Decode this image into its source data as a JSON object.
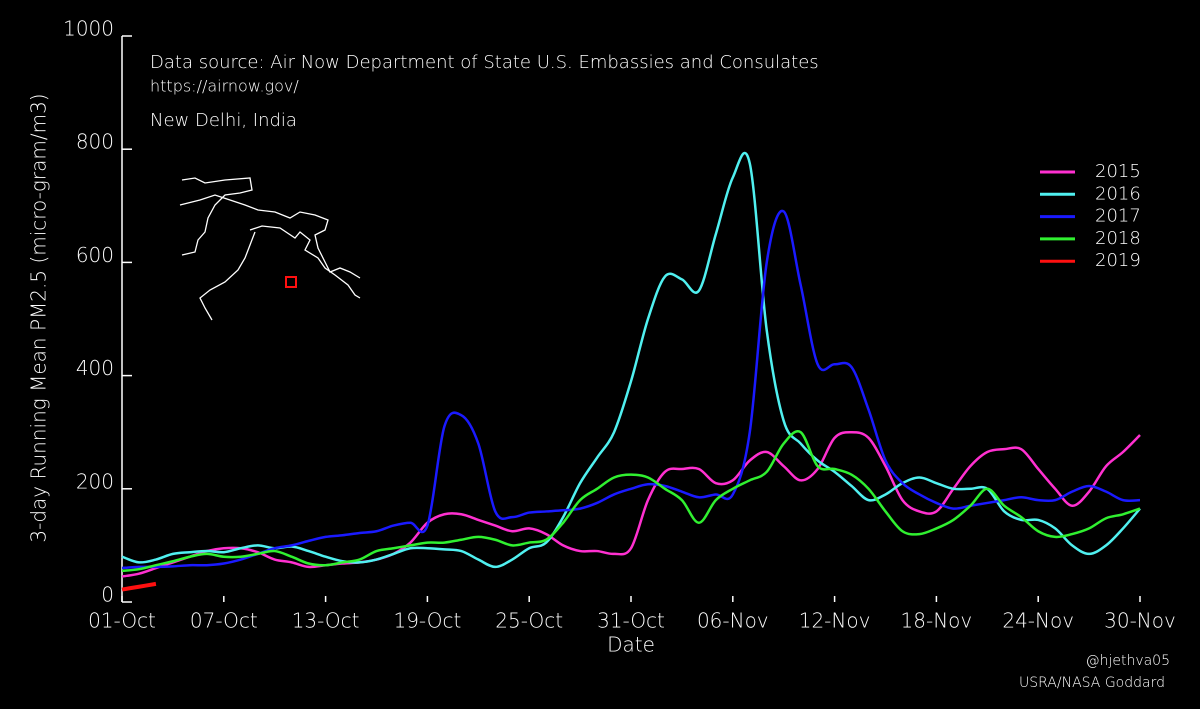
{
  "chart_data": {
    "type": "line",
    "title": "Data source: Air Now Department of State U.S. Embassies and Consulates",
    "subtitle": "https://airnow.gov/",
    "location": "New Delhi, India",
    "x_label": "Date",
    "y_label": "3-day Running Mean PM2.5 (micro-gram/m3)",
    "credits": [
      "@hjethva05",
      "USRA/NASA Goddard"
    ],
    "x": [
      0,
      1,
      2,
      3,
      4,
      5,
      6,
      7,
      8,
      9,
      10,
      11,
      12,
      13,
      14,
      15,
      16,
      17,
      18,
      19,
      20,
      21,
      22,
      23,
      24,
      25,
      26,
      27,
      28,
      29,
      30,
      31,
      32,
      33,
      34,
      35,
      36,
      37,
      38,
      39,
      40,
      41,
      42,
      43,
      44,
      45,
      46,
      47,
      48,
      49,
      50,
      51,
      52,
      53,
      54,
      55,
      56,
      57,
      58,
      59,
      60
    ],
    "xlim": [
      0,
      60
    ],
    "xticks": [
      {
        "value": 0,
        "label": "01-Oct"
      },
      {
        "value": 6,
        "label": "07-Oct"
      },
      {
        "value": 12,
        "label": "13-Oct"
      },
      {
        "value": 18,
        "label": "19-Oct"
      },
      {
        "value": 24,
        "label": "25-Oct"
      },
      {
        "value": 30,
        "label": "31-Oct"
      },
      {
        "value": 36,
        "label": "06-Nov"
      },
      {
        "value": 42,
        "label": "12-Nov"
      },
      {
        "value": 48,
        "label": "18-Nov"
      },
      {
        "value": 54,
        "label": "24-Nov"
      },
      {
        "value": 60,
        "label": "30-Nov"
      }
    ],
    "ylim": [
      0,
      1000
    ],
    "yticks": [
      0,
      200,
      400,
      600,
      800,
      1000
    ],
    "legend": "upper right",
    "series": [
      {
        "name": "2015",
        "color": "#ff30d0",
        "values": [
          45,
          50,
          60,
          70,
          80,
          90,
          95,
          95,
          88,
          75,
          70,
          62,
          65,
          68,
          70,
          75,
          85,
          105,
          140,
          155,
          155,
          145,
          135,
          125,
          130,
          120,
          100,
          90,
          90,
          85,
          95,
          180,
          230,
          235,
          235,
          210,
          215,
          250,
          265,
          240,
          215,
          235,
          290,
          300,
          290,
          240,
          180,
          160,
          160,
          200,
          240,
          265,
          270,
          270,
          235,
          200,
          170,
          195,
          240,
          265,
          295
        ]
      },
      {
        "name": "2016",
        "color": "#50f0f0",
        "values": [
          80,
          70,
          75,
          85,
          88,
          90,
          88,
          95,
          100,
          95,
          98,
          90,
          80,
          72,
          70,
          75,
          85,
          95,
          95,
          93,
          90,
          75,
          62,
          75,
          95,
          105,
          150,
          210,
          255,
          300,
          390,
          500,
          575,
          570,
          550,
          650,
          750,
          775,
          480,
          320,
          280,
          250,
          230,
          205,
          180,
          190,
          210,
          220,
          210,
          200,
          200,
          200,
          160,
          145,
          145,
          130,
          100,
          85,
          100,
          130,
          165
        ]
      },
      {
        "name": "2017",
        "color": "#1a1aff",
        "values": [
          60,
          62,
          62,
          63,
          65,
          65,
          68,
          75,
          85,
          95,
          100,
          108,
          115,
          118,
          122,
          125,
          135,
          140,
          135,
          310,
          330,
          280,
          160,
          150,
          158,
          160,
          162,
          165,
          175,
          190,
          200,
          208,
          205,
          195,
          185,
          190,
          190,
          300,
          600,
          690,
          560,
          420,
          420,
          415,
          340,
          250,
          210,
          190,
          175,
          165,
          170,
          175,
          180,
          185,
          180,
          180,
          195,
          205,
          195,
          180,
          180
        ]
      },
      {
        "name": "2018",
        "color": "#30f030",
        "values": [
          55,
          58,
          65,
          72,
          80,
          85,
          80,
          80,
          85,
          90,
          80,
          68,
          65,
          70,
          75,
          90,
          95,
          100,
          105,
          105,
          110,
          115,
          110,
          100,
          105,
          110,
          140,
          180,
          200,
          220,
          225,
          220,
          200,
          180,
          140,
          180,
          200,
          215,
          230,
          280,
          300,
          240,
          235,
          225,
          200,
          160,
          125,
          120,
          130,
          145,
          170,
          200,
          170,
          150,
          125,
          115,
          120,
          130,
          148,
          155,
          165
        ]
      },
      {
        "name": "2019",
        "color": "#ff1010",
        "values": [
          22,
          27,
          32,
          null,
          null,
          null,
          null,
          null,
          null,
          null,
          null,
          null,
          null,
          null,
          null,
          null,
          null,
          null,
          null,
          null,
          null,
          null,
          null,
          null,
          null,
          null,
          null,
          null,
          null,
          null,
          null,
          null,
          null,
          null,
          null,
          null,
          null,
          null,
          null,
          null,
          null,
          null,
          null,
          null,
          null,
          null,
          null,
          null,
          null,
          null,
          null,
          null,
          null,
          null,
          null,
          null,
          null,
          null,
          null,
          null,
          null
        ]
      }
    ]
  }
}
